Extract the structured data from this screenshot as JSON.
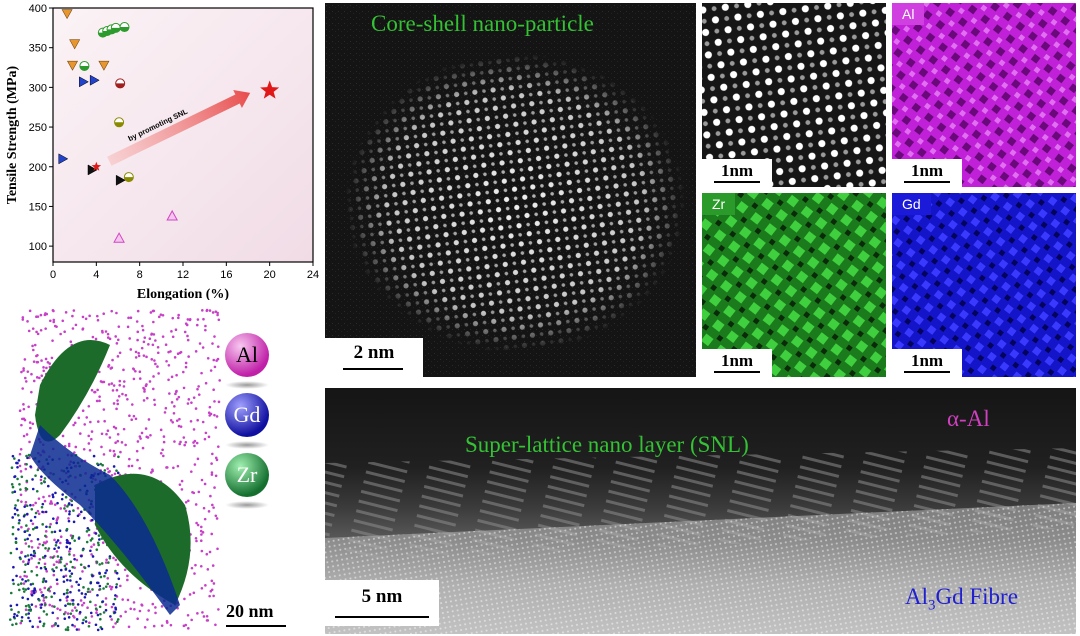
{
  "chart_data": {
    "type": "scatter",
    "xlabel": "Elongation (%)",
    "ylabel": "Tensile Strength (MPa)",
    "xlim": [
      0,
      24
    ],
    "ylim": [
      80,
      400
    ],
    "xticks": [
      0,
      4,
      8,
      12,
      16,
      20,
      24
    ],
    "yticks": [
      100,
      150,
      200,
      250,
      300,
      350,
      400
    ],
    "background_color": "#f6e8ef",
    "points": [
      {
        "x": 1.3,
        "y": 393,
        "marker": "tri-down",
        "color": "#e8962e"
      },
      {
        "x": 2.0,
        "y": 355,
        "marker": "tri-down",
        "color": "#e8962e"
      },
      {
        "x": 1.8,
        "y": 328,
        "marker": "tri-down",
        "color": "#e8962e"
      },
      {
        "x": 4.7,
        "y": 328,
        "marker": "tri-down",
        "color": "#e8962e"
      },
      {
        "x": 2.9,
        "y": 327,
        "marker": "half-circle",
        "color": "#2d9a2d"
      },
      {
        "x": 4.6,
        "y": 369,
        "marker": "half-circle",
        "color": "#2d9a2d"
      },
      {
        "x": 5.0,
        "y": 371,
        "marker": "half-circle",
        "color": "#2d9a2d"
      },
      {
        "x": 5.4,
        "y": 373,
        "marker": "half-circle",
        "color": "#2d9a2d"
      },
      {
        "x": 5.8,
        "y": 375,
        "marker": "half-circle",
        "color": "#2d9a2d"
      },
      {
        "x": 6.6,
        "y": 376,
        "marker": "half-circle",
        "color": "#2d9a2d"
      },
      {
        "x": 2.8,
        "y": 307,
        "marker": "tri-right",
        "color": "#2244cc"
      },
      {
        "x": 3.8,
        "y": 309,
        "marker": "tri-right",
        "color": "#2244cc"
      },
      {
        "x": 0.9,
        "y": 210,
        "marker": "tri-right",
        "color": "#2244cc"
      },
      {
        "x": 6.2,
        "y": 305,
        "marker": "half-circle",
        "color": "#a01f1f"
      },
      {
        "x": 6.1,
        "y": 256,
        "marker": "half-circle",
        "color": "#8a8a00"
      },
      {
        "x": 7.0,
        "y": 187,
        "marker": "half-circle",
        "color": "#8a8a00"
      },
      {
        "x": 3.6,
        "y": 196,
        "marker": "tri-right",
        "color": "#111111"
      },
      {
        "x": 6.2,
        "y": 183,
        "marker": "tri-right",
        "color": "#111111"
      },
      {
        "x": 11.0,
        "y": 138,
        "marker": "tri-up",
        "color": "#d046c4"
      },
      {
        "x": 6.1,
        "y": 110,
        "marker": "tri-up",
        "color": "#d046c4"
      },
      {
        "x": 4.0,
        "y": 200,
        "marker": "star-small",
        "color": "#e01818"
      },
      {
        "x": 20.0,
        "y": 296,
        "marker": "star",
        "color": "#e01818"
      }
    ],
    "annotation": {
      "text": "by promoting SNL",
      "from": {
        "x": 5.2,
        "y": 207
      },
      "to": {
        "x": 18.2,
        "y": 293
      },
      "color": "#f08080"
    }
  },
  "labels": {
    "core_shell": "Core-shell nano-particle",
    "snl": "Super-lattice nano layer (SNL)",
    "alpha_al": "α-Al",
    "fibre_prefix": "Al",
    "fibre_sub": "3",
    "fibre_suffix": "Gd Fibre"
  },
  "scalebars": {
    "main": "2 nm",
    "map": "1nm",
    "snl": "5 nm",
    "apt": "20 nm"
  },
  "map_tags": {
    "al": "Al",
    "zr": "Zr",
    "gd": "Gd"
  },
  "legend": {
    "al": "Al",
    "gd": "Gd",
    "zr": "Zr"
  },
  "colors": {
    "label_green": "#34c234",
    "label_pink": "#d040c0",
    "label_blue": "#2020d0",
    "al_map": "#b010c8",
    "zr_map": "#1f8a1f",
    "gd_map": "#1010c0"
  }
}
